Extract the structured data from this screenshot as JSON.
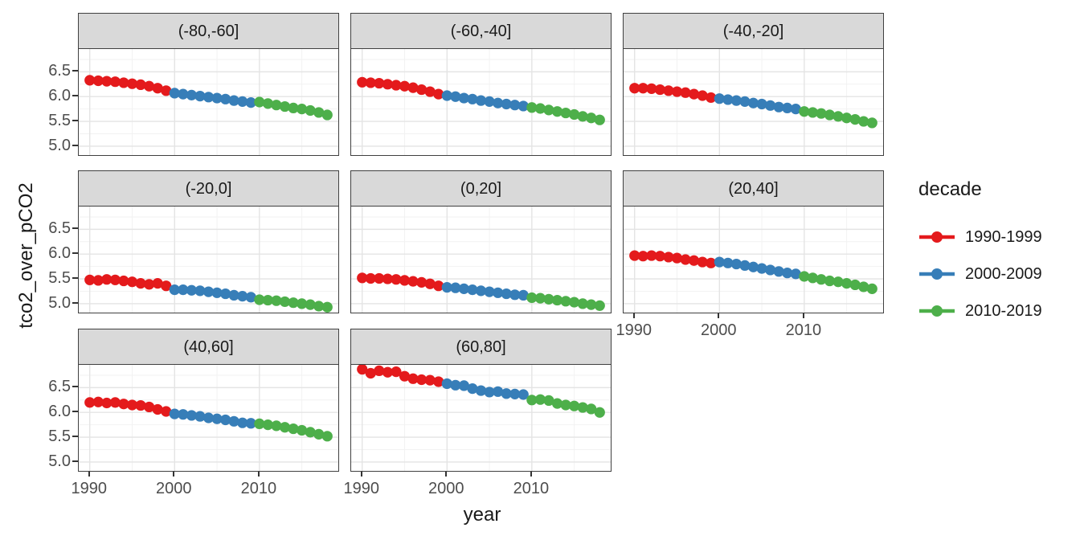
{
  "figure": {
    "x_axis_title": "year",
    "y_axis_title": "tco2_over_pCO2"
  },
  "theme": {
    "strip_bg": "#D9D9D9",
    "panel_border": "#404040",
    "grid_major": "#E4E4E4",
    "grid_minor": "#F2F2F2",
    "tick_mark_color": "#333333",
    "tick_label_color": "#4D4D4D",
    "text_color": "#1A1A1A",
    "background": "#FFFFFF"
  },
  "chart_data": {
    "type": "scatter",
    "title": "",
    "xlabel": "year",
    "ylabel": "tco2_over_pCO2",
    "grid": "on",
    "legend_position": "right",
    "legend_title": "decade",
    "xlim": [
      1988.7,
      2019.3
    ],
    "ylim": [
      4.82,
      6.96
    ],
    "x_ticks": [
      1990,
      2000,
      2010
    ],
    "x_tick_labels": [
      "1990",
      "2000",
      "2010"
    ],
    "x_minor_ticks": [
      1995,
      2005,
      2015
    ],
    "y_ticks": [
      5.0,
      5.5,
      6.0,
      6.5
    ],
    "y_tick_labels": [
      "5.0",
      "5.5",
      "6.0",
      "6.5"
    ],
    "y_minor_ticks": [
      5.25,
      5.75,
      6.25,
      6.75
    ],
    "decades": [
      {
        "label": "1990-1999",
        "start": 1990,
        "end": 1999,
        "color": "#E41A1C"
      },
      {
        "label": "2000-2009",
        "start": 2000,
        "end": 2009,
        "color": "#377EB8"
      },
      {
        "label": "2010-2019",
        "start": 2010,
        "end": 2019,
        "color": "#4DAF4A"
      }
    ],
    "x": [
      1990,
      1991,
      1992,
      1993,
      1994,
      1995,
      1996,
      1997,
      1998,
      1999,
      2000,
      2001,
      2002,
      2003,
      2004,
      2005,
      2006,
      2007,
      2008,
      2009,
      2010,
      2011,
      2012,
      2013,
      2014,
      2015,
      2016,
      2017,
      2018
    ],
    "facets": [
      {
        "label": "(-80,-60]",
        "values": [
          6.33,
          6.32,
          6.31,
          6.3,
          6.28,
          6.26,
          6.24,
          6.21,
          6.17,
          6.12,
          6.07,
          6.05,
          6.03,
          6.01,
          5.99,
          5.97,
          5.95,
          5.92,
          5.9,
          5.88,
          5.89,
          5.86,
          5.83,
          5.8,
          5.77,
          5.75,
          5.72,
          5.68,
          5.63
        ]
      },
      {
        "label": "(-60,-40]",
        "values": [
          6.29,
          6.28,
          6.27,
          6.25,
          6.23,
          6.21,
          6.18,
          6.14,
          6.1,
          6.05,
          6.02,
          6.0,
          5.97,
          5.95,
          5.92,
          5.9,
          5.87,
          5.85,
          5.83,
          5.81,
          5.78,
          5.76,
          5.73,
          5.7,
          5.67,
          5.64,
          5.6,
          5.57,
          5.53
        ]
      },
      {
        "label": "(-40,-20]",
        "values": [
          6.17,
          6.17,
          6.16,
          6.14,
          6.12,
          6.1,
          6.08,
          6.05,
          6.02,
          5.98,
          5.96,
          5.94,
          5.92,
          5.9,
          5.87,
          5.85,
          5.82,
          5.79,
          5.77,
          5.75,
          5.7,
          5.68,
          5.66,
          5.63,
          5.6,
          5.57,
          5.54,
          5.5,
          5.47
        ]
      },
      {
        "label": "(-20,0]",
        "values": [
          5.48,
          5.47,
          5.49,
          5.48,
          5.46,
          5.44,
          5.41,
          5.39,
          5.41,
          5.36,
          5.28,
          5.28,
          5.27,
          5.26,
          5.24,
          5.22,
          5.2,
          5.17,
          5.15,
          5.13,
          5.08,
          5.07,
          5.06,
          5.04,
          5.02,
          5.0,
          4.98,
          4.95,
          4.93
        ]
      },
      {
        "label": "(0,20]",
        "values": [
          5.52,
          5.51,
          5.51,
          5.5,
          5.49,
          5.47,
          5.45,
          5.43,
          5.4,
          5.36,
          5.33,
          5.32,
          5.3,
          5.28,
          5.26,
          5.24,
          5.22,
          5.2,
          5.18,
          5.17,
          5.12,
          5.11,
          5.09,
          5.07,
          5.05,
          5.03,
          5.0,
          4.98,
          4.96
        ]
      },
      {
        "label": "(20,40]",
        "values": [
          5.97,
          5.96,
          5.97,
          5.96,
          5.94,
          5.92,
          5.89,
          5.87,
          5.84,
          5.82,
          5.84,
          5.82,
          5.8,
          5.77,
          5.74,
          5.71,
          5.68,
          5.65,
          5.62,
          5.6,
          5.55,
          5.52,
          5.49,
          5.46,
          5.44,
          5.41,
          5.38,
          5.34,
          5.3
        ]
      },
      {
        "label": "(40,60]",
        "values": [
          6.2,
          6.21,
          6.19,
          6.2,
          6.17,
          6.15,
          6.14,
          6.11,
          6.06,
          6.02,
          5.97,
          5.96,
          5.94,
          5.92,
          5.89,
          5.87,
          5.85,
          5.82,
          5.79,
          5.78,
          5.77,
          5.75,
          5.73,
          5.7,
          5.67,
          5.64,
          5.6,
          5.56,
          5.52
        ]
      },
      {
        "label": "(60,80]",
        "values": [
          6.87,
          6.79,
          6.84,
          6.81,
          6.82,
          6.73,
          6.68,
          6.66,
          6.65,
          6.62,
          6.58,
          6.55,
          6.54,
          6.48,
          6.44,
          6.41,
          6.42,
          6.38,
          6.37,
          6.36,
          6.25,
          6.26,
          6.24,
          6.18,
          6.15,
          6.13,
          6.1,
          6.07,
          6.0
        ]
      }
    ]
  }
}
